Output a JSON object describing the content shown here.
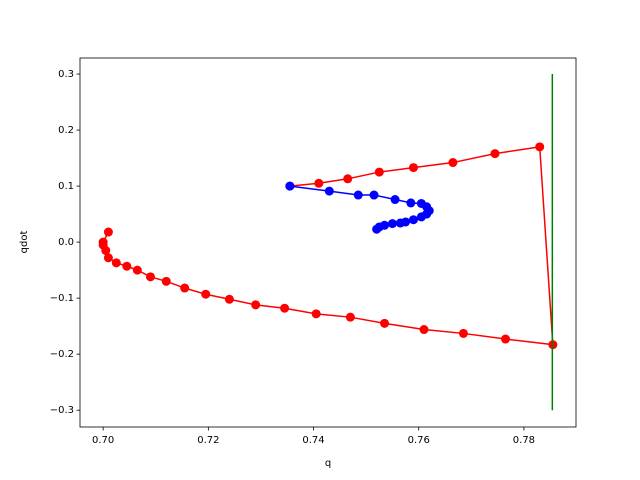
{
  "chart_data": {
    "type": "line",
    "x_label": "q",
    "y_label": "qdot",
    "xlim": [
      0.6956,
      0.7899
    ],
    "ylim": [
      -0.33,
      0.3286
    ],
    "xticks": [
      {
        "value": 0.7,
        "label": "0.70"
      },
      {
        "value": 0.72,
        "label": "0.72"
      },
      {
        "value": 0.74,
        "label": "0.74"
      },
      {
        "value": 0.76,
        "label": "0.76"
      },
      {
        "value": 0.78,
        "label": "0.78"
      }
    ],
    "yticks": [
      {
        "value": -0.3,
        "label": "−0.3"
      },
      {
        "value": -0.2,
        "label": "−0.2"
      },
      {
        "value": -0.1,
        "label": "−0.1"
      },
      {
        "value": 0,
        "label": "0.0"
      },
      0.1,
      0.2,
      0.3
    ],
    "series": [
      {
        "color": "#ff0000",
        "marker": true,
        "x": [
          0.7355,
          0.741,
          0.7465,
          0.7525,
          0.759,
          0.7665,
          0.7745,
          0.783,
          0.7855,
          0.7765,
          0.7685,
          0.761,
          0.7535,
          0.747,
          0.7405,
          0.7345,
          0.729,
          0.724,
          0.7195,
          0.7155,
          0.712,
          0.709,
          0.7065,
          0.7045,
          0.7025,
          0.701,
          0.7005,
          0.7,
          0.7,
          0.701
        ],
        "values": [
          0.1,
          0.105,
          0.113,
          0.125,
          0.133,
          0.142,
          0.158,
          0.17,
          -0.183,
          -0.173,
          -0.163,
          -0.156,
          -0.145,
          -0.134,
          -0.128,
          -0.118,
          -0.112,
          -0.102,
          -0.093,
          -0.082,
          -0.07,
          -0.062,
          -0.05,
          -0.043,
          -0.037,
          -0.028,
          -0.015,
          -0.005,
          0.0,
          0.018
        ]
      },
      {
        "color": "#0000ff",
        "marker": true,
        "x": [
          0.7355,
          0.743,
          0.7485,
          0.7515,
          0.7555,
          0.7585,
          0.7605,
          0.7615,
          0.762,
          0.7615,
          0.7605,
          0.759,
          0.7575,
          0.7565,
          0.755,
          0.7535,
          0.7525,
          0.752
        ],
        "values": [
          0.1,
          0.091,
          0.084,
          0.084,
          0.076,
          0.07,
          0.069,
          0.063,
          0.056,
          0.05,
          0.045,
          0.04,
          0.036,
          0.034,
          0.033,
          0.03,
          0.027,
          0.023
        ]
      },
      {
        "color": "#008000",
        "marker": false,
        "x": [
          0.7854,
          0.7854
        ],
        "values": [
          -0.3,
          0.3
        ]
      }
    ]
  }
}
